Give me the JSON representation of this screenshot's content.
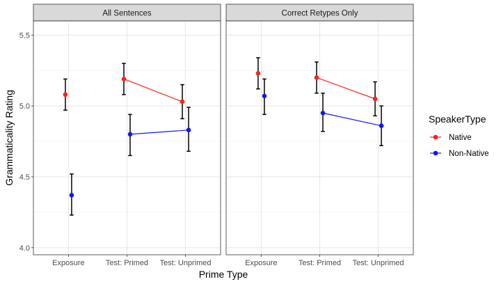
{
  "chart_data": {
    "type": "scatter",
    "xlabel": "Prime Type",
    "ylabel": "Grammaticality Rating",
    "ylim": [
      3.95,
      5.6
    ],
    "yticks": [
      "4.0",
      "4.5",
      "5.0",
      "5.5"
    ],
    "ytick_values": [
      4.0,
      4.5,
      5.0,
      5.5
    ],
    "categories": [
      "Exposure",
      "Test: Primed",
      "Test: Unprimed"
    ],
    "grid": true,
    "legend": {
      "title": "SpeakerType",
      "placement": "right",
      "entries": [
        {
          "name": "Native",
          "color": "#F8231B"
        },
        {
          "name": "Non-Native",
          "color": "#1515F2"
        }
      ]
    },
    "panels": [
      {
        "title": "All Sentences",
        "series": [
          {
            "name": "Native",
            "color": "#F8231B",
            "points": [
              {
                "x": "Exposure",
                "y": 5.08,
                "lo": 4.97,
                "hi": 5.19
              },
              {
                "x": "Test: Primed",
                "y": 5.19,
                "lo": 5.08,
                "hi": 5.3
              },
              {
                "x": "Test: Unprimed",
                "y": 5.03,
                "lo": 4.91,
                "hi": 5.15
              }
            ]
          },
          {
            "name": "Non-Native",
            "color": "#1515F2",
            "points": [
              {
                "x": "Exposure",
                "y": 4.37,
                "lo": 4.23,
                "hi": 4.52
              },
              {
                "x": "Test: Primed",
                "y": 4.8,
                "lo": 4.65,
                "hi": 4.94
              },
              {
                "x": "Test: Unprimed",
                "y": 4.83,
                "lo": 4.68,
                "hi": 4.99
              }
            ]
          }
        ]
      },
      {
        "title": "Correct Retypes Only",
        "series": [
          {
            "name": "Native",
            "color": "#F8231B",
            "points": [
              {
                "x": "Exposure",
                "y": 5.23,
                "lo": 5.12,
                "hi": 5.34
              },
              {
                "x": "Test: Primed",
                "y": 5.2,
                "lo": 5.09,
                "hi": 5.31
              },
              {
                "x": "Test: Unprimed",
                "y": 5.05,
                "lo": 4.93,
                "hi": 5.17
              }
            ]
          },
          {
            "name": "Non-Native",
            "color": "#1515F2",
            "points": [
              {
                "x": "Exposure",
                "y": 5.07,
                "lo": 4.94,
                "hi": 5.19
              },
              {
                "x": "Test: Primed",
                "y": 4.95,
                "lo": 4.82,
                "hi": 5.09
              },
              {
                "x": "Test: Unprimed",
                "y": 4.86,
                "lo": 4.72,
                "hi": 5.0
              }
            ]
          }
        ]
      }
    ]
  }
}
